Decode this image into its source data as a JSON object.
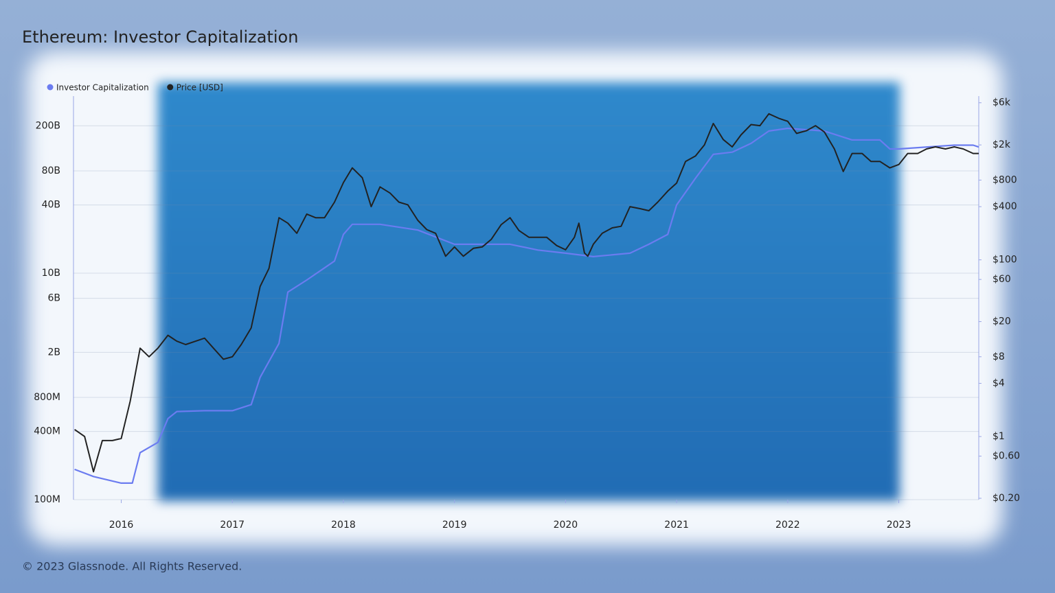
{
  "chart_data": {
    "type": "line",
    "title": "Ethereum: Investor Capitalization",
    "footer": "© 2023 Glassnode. All Rights Reserved.",
    "xlim": [
      2015.57,
      2023.72
    ],
    "xticks": [
      2016,
      2017,
      2018,
      2019,
      2020,
      2021,
      2022,
      2023
    ],
    "ylim": [
      100000000,
      366000000000
    ],
    "yticks": [
      {
        "value": 100000000,
        "label": "100M"
      },
      {
        "value": 400000000,
        "label": "400M"
      },
      {
        "value": 800000000,
        "label": "800M"
      },
      {
        "value": 2000000000,
        "label": "2B"
      },
      {
        "value": 6000000000,
        "label": "6B"
      },
      {
        "value": 10000000000,
        "label": "10B"
      },
      {
        "value": 40000000000,
        "label": "40B"
      },
      {
        "value": 80000000000,
        "label": "80B"
      },
      {
        "value": 200000000000,
        "label": "200B"
      }
    ],
    "y2lim": [
      0.193,
      7140
    ],
    "y2ticks": [
      {
        "value": 0.2,
        "label": "$0.20"
      },
      {
        "value": 0.6,
        "label": "$0.60"
      },
      {
        "value": 1,
        "label": "$1"
      },
      {
        "value": 4,
        "label": "$4"
      },
      {
        "value": 8,
        "label": "$8"
      },
      {
        "value": 20,
        "label": "$20"
      },
      {
        "value": 60,
        "label": "$60"
      },
      {
        "value": 100,
        "label": "$100"
      },
      {
        "value": 400,
        "label": "$400"
      },
      {
        "value": 800,
        "label": "$800"
      },
      {
        "value": 2000,
        "label": "$2k"
      },
      {
        "value": 6000,
        "label": "$6k"
      }
    ],
    "log_scale": true,
    "grid": true,
    "legend": "top-left",
    "series": [
      {
        "name": "Investor Capitalization",
        "color": "#6b7cf0",
        "x": [
          2015.58,
          2015.75,
          2016.0,
          2016.1,
          2016.17,
          2016.33,
          2016.42,
          2016.5,
          2016.75,
          2017.0,
          2017.17,
          2017.25,
          2017.42,
          2017.5,
          2017.67,
          2017.92,
          2018.0,
          2018.08,
          2018.33,
          2018.67,
          2019.0,
          2019.5,
          2019.75,
          2020.0,
          2020.25,
          2020.58,
          2020.75,
          2020.92,
          2021.0,
          2021.17,
          2021.33,
          2021.5,
          2021.67,
          2021.83,
          2022.0,
          2022.33,
          2022.58,
          2022.83,
          2022.92,
          2023.0,
          2023.5,
          2023.67,
          2023.72
        ],
        "values": [
          185000000,
          160000000,
          140000000,
          140000000,
          260000000,
          320000000,
          520000000,
          600000000,
          610000000,
          610000000,
          690000000,
          1200000000,
          2400000000,
          6800000000,
          8700000000,
          12800000000,
          22000000000,
          27000000000,
          27000000000,
          24000000000,
          18000000000,
          18000000000,
          16000000000,
          15000000000,
          14000000000,
          15000000000,
          18000000000,
          22000000000,
          40000000000,
          69000000000,
          112000000000,
          117000000000,
          140000000000,
          180000000000,
          190000000000,
          180000000000,
          150000000000,
          150000000000,
          125000000000,
          125000000000,
          135000000000,
          135000000000,
          130000000000
        ]
      },
      {
        "name": "Price [USD]",
        "color": "#222222",
        "axis": "y2",
        "x": [
          2015.58,
          2015.67,
          2015.75,
          2015.83,
          2015.92,
          2016.0,
          2016.08,
          2016.17,
          2016.25,
          2016.33,
          2016.42,
          2016.5,
          2016.58,
          2016.67,
          2016.75,
          2016.83,
          2016.92,
          2017.0,
          2017.08,
          2017.17,
          2017.25,
          2017.33,
          2017.42,
          2017.5,
          2017.58,
          2017.67,
          2017.75,
          2017.83,
          2017.92,
          2018.0,
          2018.08,
          2018.17,
          2018.25,
          2018.33,
          2018.42,
          2018.5,
          2018.58,
          2018.67,
          2018.75,
          2018.83,
          2018.92,
          2019.0,
          2019.08,
          2019.17,
          2019.25,
          2019.33,
          2019.42,
          2019.5,
          2019.58,
          2019.67,
          2019.75,
          2019.83,
          2019.92,
          2020.0,
          2020.08,
          2020.12,
          2020.17,
          2020.2,
          2020.25,
          2020.33,
          2020.42,
          2020.5,
          2020.58,
          2020.67,
          2020.75,
          2020.83,
          2020.92,
          2021.0,
          2021.08,
          2021.17,
          2021.25,
          2021.33,
          2021.42,
          2021.5,
          2021.58,
          2021.67,
          2021.75,
          2021.83,
          2021.92,
          2022.0,
          2022.08,
          2022.17,
          2022.25,
          2022.33,
          2022.42,
          2022.5,
          2022.58,
          2022.67,
          2022.75,
          2022.83,
          2022.92,
          2023.0,
          2023.08,
          2023.17,
          2023.25,
          2023.33,
          2023.42,
          2023.5,
          2023.58,
          2023.67,
          2023.72
        ],
        "values": [
          1.2,
          1.0,
          0.4,
          0.9,
          0.9,
          0.95,
          2.5,
          10,
          8,
          10,
          14,
          12,
          11,
          12,
          13,
          10,
          7.5,
          8,
          11,
          17,
          50,
          80,
          300,
          260,
          200,
          330,
          300,
          300,
          450,
          750,
          1100,
          850,
          400,
          670,
          570,
          450,
          420,
          280,
          220,
          200,
          110,
          140,
          110,
          135,
          140,
          170,
          250,
          300,
          215,
          180,
          180,
          180,
          145,
          130,
          180,
          260,
          120,
          110,
          150,
          200,
          230,
          240,
          400,
          380,
          360,
          450,
          600,
          740,
          1300,
          1500,
          2000,
          3500,
          2300,
          1900,
          2600,
          3400,
          3300,
          4500,
          4000,
          3700,
          2700,
          2900,
          3300,
          2800,
          1800,
          1000,
          1600,
          1600,
          1300,
          1300,
          1100,
          1200,
          1600,
          1600,
          1800,
          1900,
          1800,
          1900,
          1800,
          1600,
          1600
        ]
      }
    ]
  }
}
